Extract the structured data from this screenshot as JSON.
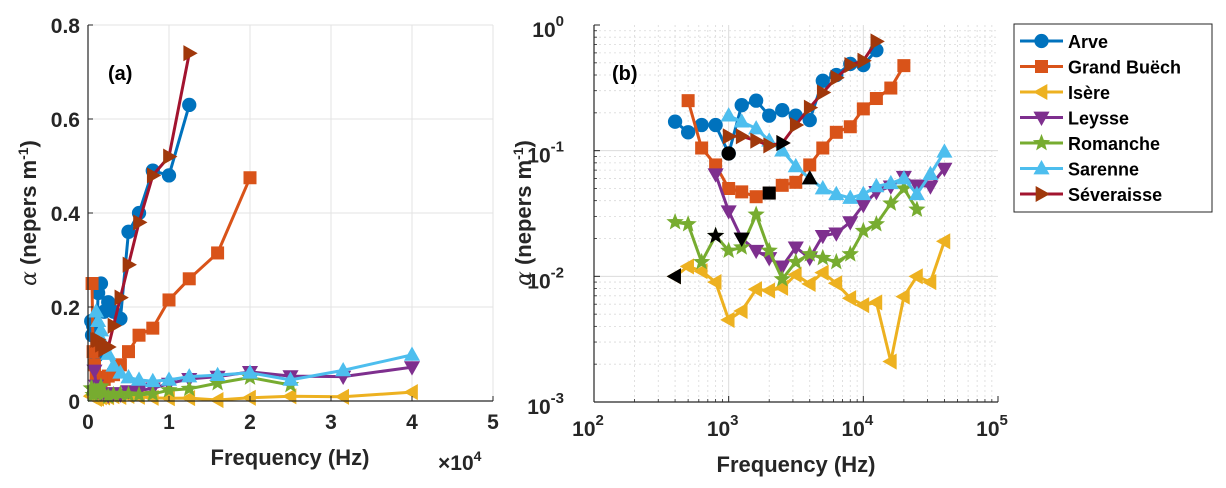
{
  "figure": {
    "legend_title": "",
    "legend_placement": "right of panel b"
  },
  "chart_data": [
    {
      "type": "line",
      "panel_label": "(a)",
      "xlabel": "Frequency (Hz)",
      "x_exponent_label": "×10",
      "x_exponent_power": "4",
      "ylabel_symbol": "α",
      "ylabel_text": "(nepers m",
      "ylabel_sup": "-1",
      "ylabel_close": ")",
      "xscale": "linear",
      "yscale": "linear",
      "xlim": [
        0,
        50000
      ],
      "ylim": [
        0,
        0.8
      ],
      "xticks": [
        0,
        10000,
        20000,
        30000,
        40000,
        50000
      ],
      "xtick_labels": [
        "0",
        "1",
        "2",
        "3",
        "4",
        "5"
      ],
      "yticks": [
        0,
        0.2,
        0.4,
        0.6,
        0.8
      ],
      "ytick_labels": [
        "0",
        "0.2",
        "0.4",
        "0.6",
        "0.8"
      ],
      "grid": true,
      "series_ref": "shared"
    },
    {
      "type": "line",
      "panel_label": "(b)",
      "xlabel": "Frequency (Hz)",
      "ylabel_symbol": "α",
      "ylabel_text": "(nepers m",
      "ylabel_sup": "-1",
      "ylabel_close": ")",
      "xscale": "log",
      "yscale": "log",
      "xlim": [
        100,
        100000
      ],
      "ylim": [
        0.001,
        1
      ],
      "xticks": [
        100,
        1000,
        10000,
        100000
      ],
      "xtick_labels": [
        {
          "base": "10",
          "exp": "2"
        },
        {
          "base": "10",
          "exp": "3"
        },
        {
          "base": "10",
          "exp": "4"
        },
        {
          "base": "10",
          "exp": "5"
        }
      ],
      "yticks": [
        0.001,
        0.01,
        0.1,
        1
      ],
      "ytick_labels": [
        {
          "base": "10",
          "exp": "-3"
        },
        {
          "base": "10",
          "exp": "-2"
        },
        {
          "base": "10",
          "exp": "-1"
        },
        {
          "base": "10",
          "exp": "0"
        }
      ],
      "grid": true,
      "minor_grid": true,
      "series_ref": "shared"
    }
  ],
  "series": [
    {
      "name": "Arve",
      "color": "#0072BD",
      "marker": "circle",
      "x": [
        400,
        500,
        630,
        800,
        1000,
        1250,
        1600,
        2000,
        2500,
        3150,
        4000,
        5000,
        6300,
        8000,
        10000,
        12500
      ],
      "y": [
        0.17,
        0.14,
        0.16,
        0.16,
        0.095,
        0.23,
        0.25,
        0.19,
        0.21,
        0.19,
        0.175,
        0.36,
        0.4,
        0.49,
        0.48,
        0.63
      ],
      "highlight_x": 1000,
      "highlight_y": 0.095
    },
    {
      "name": "Grand Buëch",
      "color": "#D95319",
      "marker": "square",
      "x": [
        500,
        630,
        800,
        1000,
        1250,
        1600,
        2000,
        2500,
        3150,
        4000,
        5000,
        6300,
        8000,
        10000,
        12500,
        16000,
        20000
      ],
      "y": [
        0.25,
        0.105,
        0.077,
        0.05,
        0.047,
        0.043,
        0.046,
        0.053,
        0.056,
        0.077,
        0.105,
        0.14,
        0.155,
        0.215,
        0.26,
        0.315,
        0.475
      ],
      "highlight_x": 2000,
      "highlight_y": 0.046
    },
    {
      "name": "Isère",
      "color": "#EDB120",
      "marker": "triangle-left",
      "x": [
        400,
        500,
        630,
        800,
        1000,
        1250,
        1600,
        2000,
        2500,
        3150,
        4000,
        5000,
        6300,
        8000,
        10000,
        12500,
        16000,
        20000,
        25000,
        31500,
        40000
      ],
      "y": [
        0.01,
        0.012,
        0.011,
        0.009,
        0.0045,
        0.0053,
        0.0079,
        0.0077,
        0.0081,
        0.0103,
        0.0087,
        0.0107,
        0.0088,
        0.0067,
        0.0059,
        0.0062,
        0.0021,
        0.0069,
        0.01,
        0.009,
        0.019
      ],
      "highlight_x": 400,
      "highlight_y": 0.01
    },
    {
      "name": "Leysse",
      "color": "#7E2F8E",
      "marker": "triangle-down",
      "x": [
        800,
        1000,
        1250,
        1600,
        2000,
        2500,
        3150,
        4000,
        5000,
        6300,
        8000,
        10000,
        12500,
        16000,
        20000,
        25000,
        31500,
        40000
      ],
      "y": [
        0.065,
        0.033,
        0.02,
        0.016,
        0.014,
        0.012,
        0.017,
        0.014,
        0.021,
        0.022,
        0.027,
        0.037,
        0.047,
        0.052,
        0.062,
        0.053,
        0.052,
        0.072
      ],
      "highlight_x": 1250,
      "highlight_y": 0.02
    },
    {
      "name": "Romanche",
      "color": "#77AC30",
      "marker": "star",
      "x": [
        400,
        500,
        630,
        800,
        1000,
        1250,
        1600,
        2000,
        2500,
        3150,
        4000,
        5000,
        6300,
        8000,
        10000,
        12500,
        16000,
        20000,
        25000
      ],
      "y": [
        0.027,
        0.026,
        0.013,
        0.021,
        0.016,
        0.017,
        0.031,
        0.016,
        0.0095,
        0.013,
        0.015,
        0.014,
        0.013,
        0.015,
        0.023,
        0.026,
        0.038,
        0.05,
        0.034
      ],
      "highlight_x": 800,
      "highlight_y": 0.021
    },
    {
      "name": "Sarenne",
      "color": "#4DBEEE",
      "marker": "triangle-up",
      "x": [
        1000,
        1250,
        1600,
        2000,
        2500,
        3150,
        4000,
        5000,
        6300,
        8000,
        10000,
        12500,
        16000,
        20000,
        25000,
        31500,
        40000
      ],
      "y": [
        0.19,
        0.17,
        0.15,
        0.12,
        0.1,
        0.075,
        0.06,
        0.05,
        0.045,
        0.042,
        0.045,
        0.052,
        0.055,
        0.06,
        0.045,
        0.065,
        0.098
      ],
      "highlight_x": 4000,
      "highlight_y": 0.06
    },
    {
      "name": "Séveraisse",
      "color": "#A2142F",
      "marker_color": "#A0380B",
      "marker": "triangle-right",
      "x": [
        1000,
        1250,
        1600,
        2000,
        2500,
        3150,
        4000,
        5000,
        6300,
        8000,
        10000,
        12500
      ],
      "y": [
        0.13,
        0.13,
        0.12,
        0.11,
        0.115,
        0.16,
        0.22,
        0.29,
        0.38,
        0.48,
        0.52,
        0.74
      ],
      "highlight_x": 2500,
      "highlight_y": 0.115
    }
  ]
}
